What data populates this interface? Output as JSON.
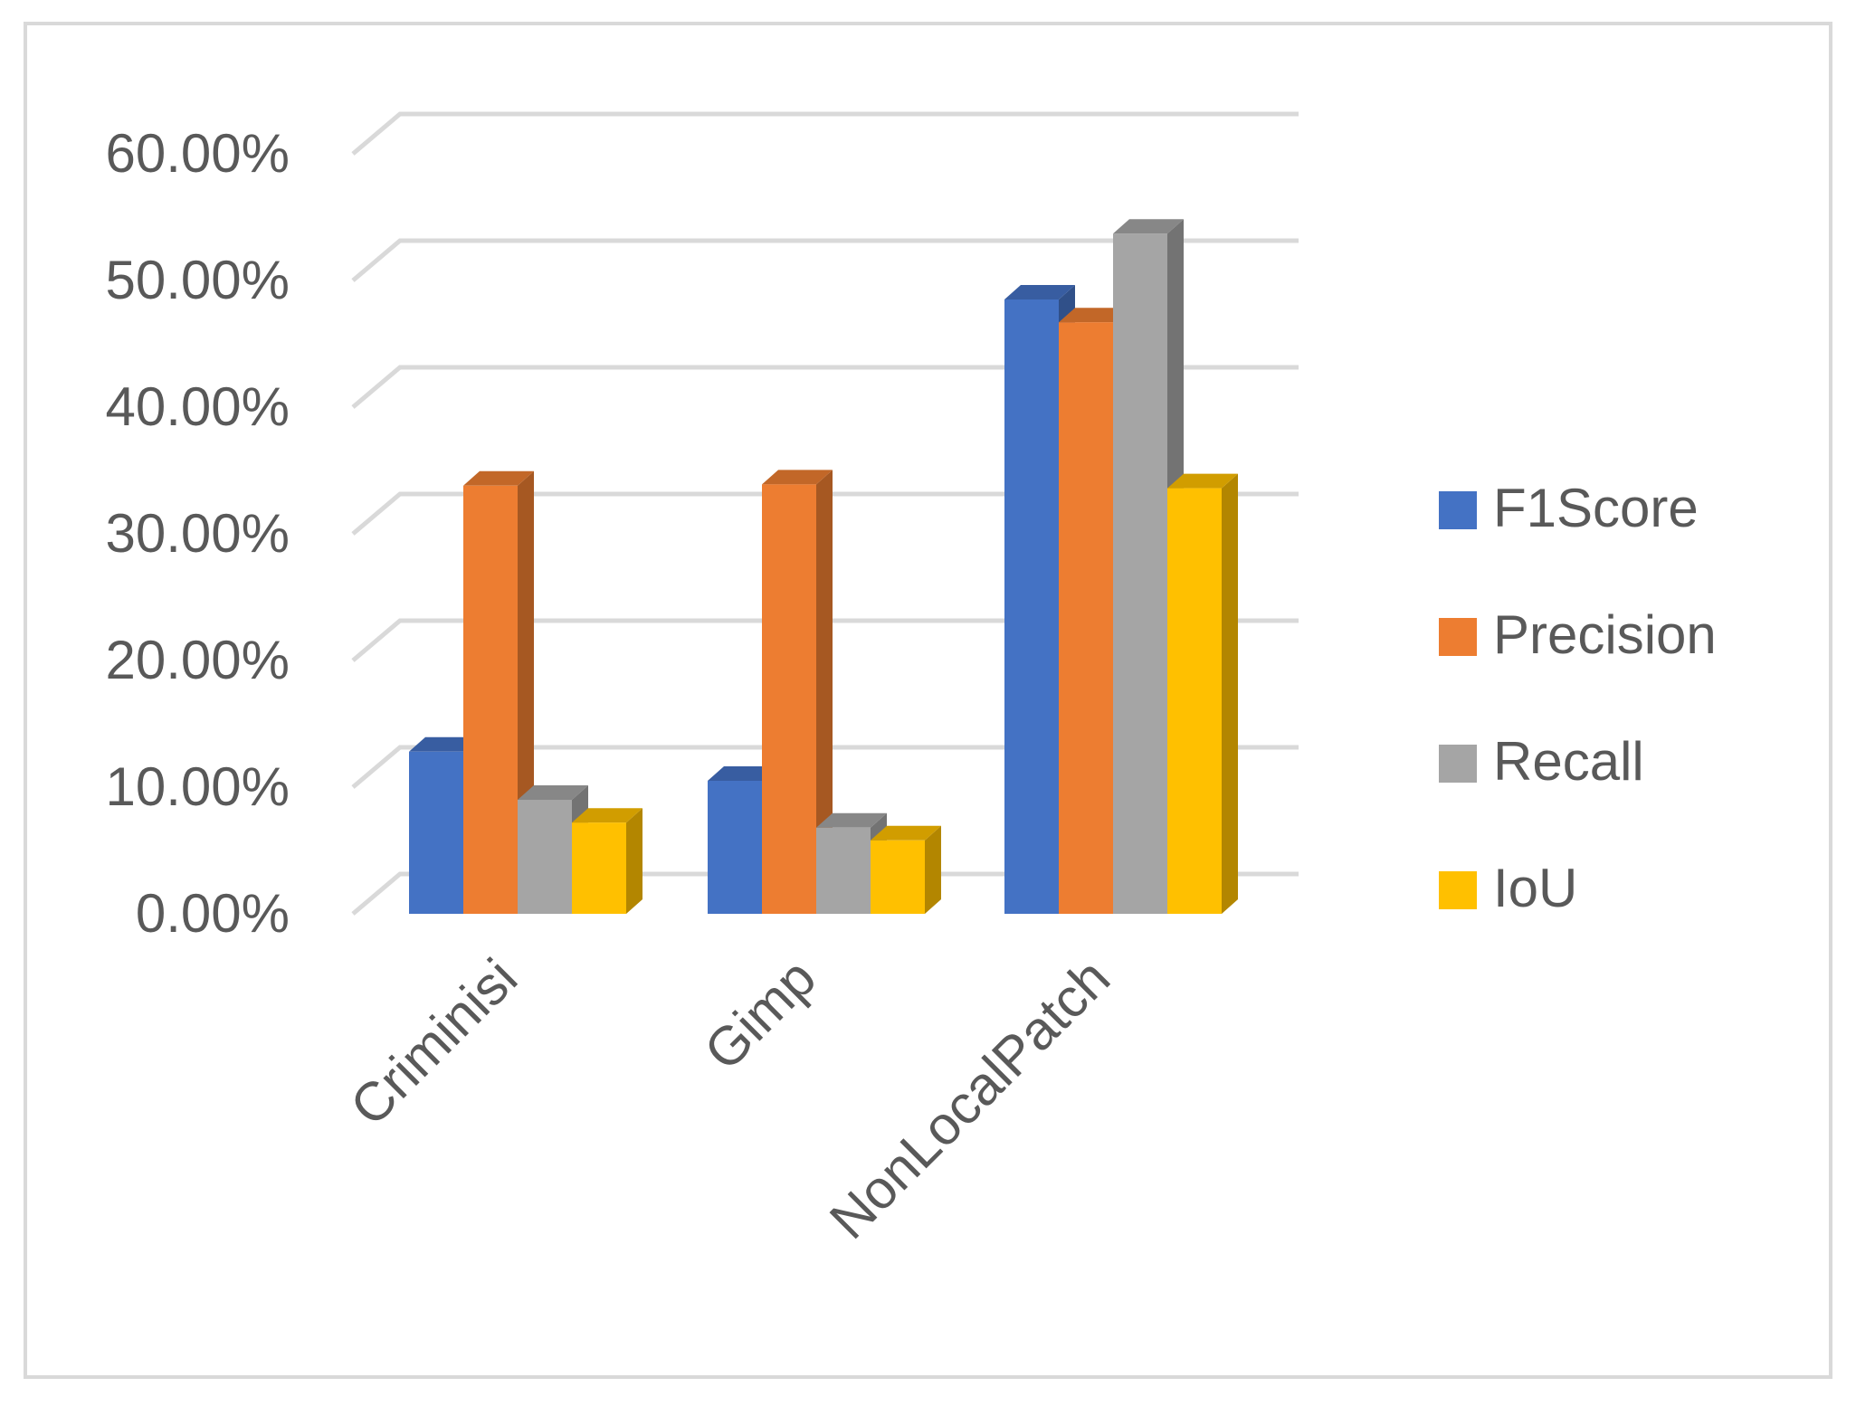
{
  "chart_data": {
    "type": "bar",
    "title": "",
    "xlabel": "",
    "ylabel": "",
    "categories": [
      "Criminisi",
      "Gimp",
      "NonLocalPatch"
    ],
    "series": [
      {
        "name": "F1Score",
        "color": "#4472C4",
        "values": [
          12.8,
          10.5,
          48.5
        ]
      },
      {
        "name": "Precision",
        "color": "#ED7D31",
        "values": [
          33.8,
          33.9,
          46.7
        ]
      },
      {
        "name": "Recall",
        "color": "#A5A5A5",
        "values": [
          9.0,
          6.8,
          53.7
        ]
      },
      {
        "name": "IoU",
        "color": "#FFC000",
        "values": [
          7.2,
          5.8,
          33.6
        ]
      }
    ],
    "ylim": [
      0,
      60
    ],
    "y_ticks": [
      "0.00%",
      "10.00%",
      "20.00%",
      "30.00%",
      "40.00%",
      "50.00%",
      "60.00%"
    ],
    "grid": true,
    "legend_position": "right",
    "style": "3d-clustered-column"
  }
}
